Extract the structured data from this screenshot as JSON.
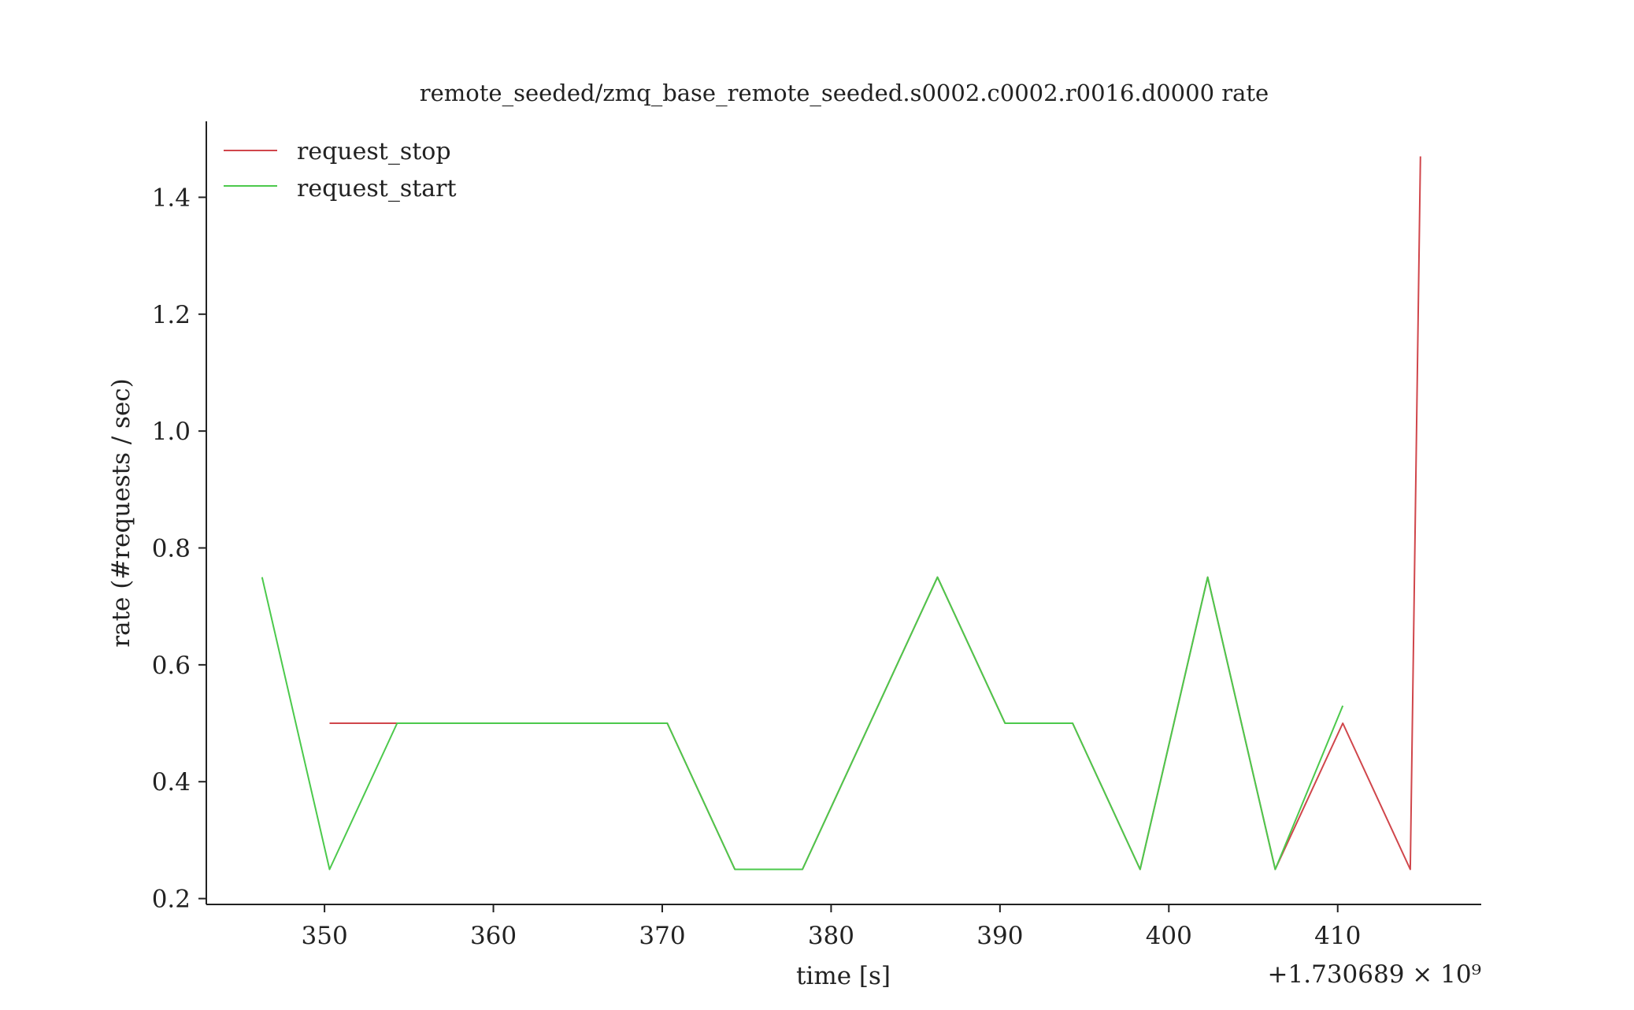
{
  "chart_data": {
    "type": "line",
    "title": "remote_seeded/zmq_base_remote_seeded.s0002.c0002.r0016.d0000 rate",
    "xlabel": "time [s]",
    "ylabel": "rate (#requests / sec)",
    "x_offset_label": "+1.730689 × 10⁹",
    "xlim": [
      343,
      418.5
    ],
    "ylim": [
      0.19,
      1.53
    ],
    "x_ticks": [
      350,
      360,
      370,
      380,
      390,
      400,
      410
    ],
    "x_tick_labels": [
      "350",
      "360",
      "370",
      "380",
      "390",
      "400",
      "410"
    ],
    "y_ticks": [
      0.2,
      0.4,
      0.6,
      0.8,
      1.0,
      1.2,
      1.4
    ],
    "y_tick_labels": [
      "0.2",
      "0.4",
      "0.6",
      "0.8",
      "1.0",
      "1.2",
      "1.4"
    ],
    "grid": false,
    "legend_position": "top-left",
    "series": [
      {
        "name": "request_stop",
        "color": "#d0464b",
        "x": [
          350.3,
          354.3,
          370.3,
          374.3,
          378.3,
          386.3,
          390.3,
          394.3,
          398.3,
          402.3,
          406.3,
          410.3,
          414.3,
          414.9
        ],
        "y": [
          0.5,
          0.5,
          0.5,
          0.25,
          0.25,
          0.75,
          0.5,
          0.5,
          0.25,
          0.75,
          0.25,
          0.5,
          0.25,
          1.47
        ]
      },
      {
        "name": "request_start",
        "color": "#4cc94c",
        "x": [
          346.3,
          350.3,
          354.3,
          370.3,
          374.3,
          378.3,
          386.3,
          390.3,
          394.3,
          398.3,
          402.3,
          406.3,
          410.3
        ],
        "y": [
          0.75,
          0.25,
          0.5,
          0.5,
          0.25,
          0.25,
          0.75,
          0.5,
          0.5,
          0.25,
          0.75,
          0.25,
          0.53
        ]
      }
    ]
  }
}
